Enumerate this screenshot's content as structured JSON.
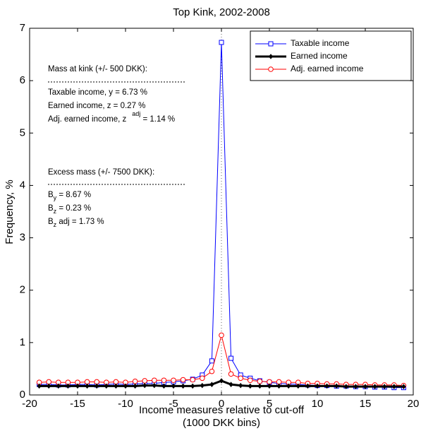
{
  "chart_data": {
    "type": "line",
    "title": "Top Kink, 2002-2008",
    "xlabel": [
      "Income measures relative to cut-off",
      "(1000 DKK bins)"
    ],
    "ylabel": "Frequency, %",
    "x": [
      -19,
      -18,
      -17,
      -16,
      -15,
      -14,
      -13,
      -12,
      -11,
      -10,
      -9,
      -8,
      -7,
      -6,
      -5,
      -4,
      -3,
      -2,
      -1,
      0,
      1,
      2,
      3,
      4,
      5,
      6,
      7,
      8,
      9,
      10,
      11,
      12,
      13,
      14,
      15,
      16,
      17,
      18,
      19
    ],
    "series": [
      {
        "name": "Taxable income",
        "color": "#0000ff",
        "marker": "square",
        "width": 1,
        "values": [
          0.2,
          0.2,
          0.19,
          0.19,
          0.2,
          0.2,
          0.19,
          0.2,
          0.21,
          0.2,
          0.21,
          0.22,
          0.22,
          0.24,
          0.25,
          0.27,
          0.3,
          0.38,
          0.65,
          6.73,
          0.7,
          0.38,
          0.32,
          0.27,
          0.24,
          0.22,
          0.21,
          0.2,
          0.19,
          0.18,
          0.18,
          0.17,
          0.17,
          0.16,
          0.16,
          0.15,
          0.15,
          0.14,
          0.14
        ]
      },
      {
        "name": "Earned income",
        "color": "#000000",
        "marker": "diamond",
        "width": 3,
        "values": [
          0.17,
          0.17,
          0.17,
          0.17,
          0.17,
          0.17,
          0.17,
          0.17,
          0.17,
          0.17,
          0.17,
          0.18,
          0.18,
          0.17,
          0.17,
          0.17,
          0.17,
          0.18,
          0.2,
          0.27,
          0.2,
          0.18,
          0.17,
          0.17,
          0.17,
          0.17,
          0.17,
          0.17,
          0.17,
          0.17,
          0.17,
          0.17,
          0.16,
          0.16,
          0.16,
          0.16,
          0.16,
          0.16,
          0.16
        ]
      },
      {
        "name": "Adj. earned income",
        "color": "#ff0000",
        "marker": "circle",
        "width": 1,
        "values": [
          0.24,
          0.25,
          0.24,
          0.24,
          0.24,
          0.25,
          0.25,
          0.24,
          0.25,
          0.24,
          0.26,
          0.27,
          0.28,
          0.28,
          0.28,
          0.29,
          0.29,
          0.32,
          0.45,
          1.14,
          0.4,
          0.32,
          0.28,
          0.26,
          0.25,
          0.25,
          0.24,
          0.24,
          0.22,
          0.22,
          0.21,
          0.21,
          0.2,
          0.2,
          0.2,
          0.19,
          0.19,
          0.19,
          0.18
        ]
      }
    ],
    "xlim": [
      -20,
      20
    ],
    "xticks": [
      -20,
      -15,
      -10,
      -5,
      0,
      5,
      10,
      15,
      20
    ],
    "ylim": [
      0,
      7
    ],
    "yticks": [
      0,
      1,
      2,
      3,
      4,
      5,
      6,
      7
    ],
    "grid": false,
    "legend": "upper right",
    "annotations": {
      "mass_header": "Mass at kink (+/- 500 DKK):",
      "mass_lines": [
        {
          "text": "Taxable income, y = 6.73 %"
        },
        {
          "text": "Earned income, z = 0.27 %"
        },
        {
          "text": "Adj. earned income, z",
          "sup": "adj",
          "rest": " = 1.14 %"
        }
      ],
      "excess_header": "Excess mass (+/- 7500 DKK):",
      "excess_lines": [
        {
          "text": "B",
          "sub": "y",
          "rest": " = 8.67 %"
        },
        {
          "text": "B",
          "sub": "z",
          "rest": " = 0.23 %"
        },
        {
          "text": "B",
          "sub": "z",
          "rest": " adj = 1.73 %"
        }
      ]
    }
  }
}
